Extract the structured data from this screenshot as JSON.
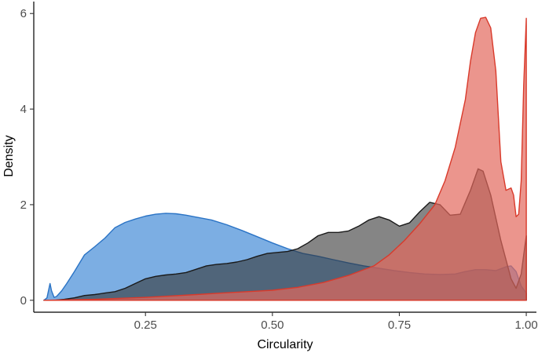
{
  "chart_data": {
    "type": "area",
    "title": "",
    "xlabel": "Circularity",
    "ylabel": "Density",
    "xlim": [
      0.03,
      1.02
    ],
    "ylim": [
      -0.25,
      6.25
    ],
    "x_ticks": [
      0.25,
      0.5,
      0.75,
      1.0
    ],
    "x_tick_labels": [
      "0.25",
      "0.50",
      "0.75",
      "1.00"
    ],
    "y_ticks": [
      0,
      2,
      4,
      6
    ],
    "y_tick_labels": [
      "0",
      "2",
      "4",
      "6"
    ],
    "grid": false,
    "legend": "none",
    "series": [
      {
        "color": "#2a73c5",
        "fill": "#4a8fd8",
        "fill_opacity": 0.72,
        "points": [
          [
            0.05,
            0.0
          ],
          [
            0.056,
            0.05
          ],
          [
            0.062,
            0.35
          ],
          [
            0.065,
            0.2
          ],
          [
            0.07,
            0.06
          ],
          [
            0.075,
            0.08
          ],
          [
            0.085,
            0.2
          ],
          [
            0.095,
            0.35
          ],
          [
            0.11,
            0.6
          ],
          [
            0.13,
            0.95
          ],
          [
            0.15,
            1.12
          ],
          [
            0.17,
            1.3
          ],
          [
            0.19,
            1.52
          ],
          [
            0.21,
            1.63
          ],
          [
            0.23,
            1.7
          ],
          [
            0.25,
            1.76
          ],
          [
            0.27,
            1.8
          ],
          [
            0.29,
            1.82
          ],
          [
            0.31,
            1.81
          ],
          [
            0.33,
            1.78
          ],
          [
            0.35,
            1.74
          ],
          [
            0.38,
            1.68
          ],
          [
            0.41,
            1.58
          ],
          [
            0.44,
            1.46
          ],
          [
            0.47,
            1.33
          ],
          [
            0.5,
            1.2
          ],
          [
            0.53,
            1.08
          ],
          [
            0.56,
            0.98
          ],
          [
            0.59,
            0.92
          ],
          [
            0.62,
            0.85
          ],
          [
            0.65,
            0.78
          ],
          [
            0.68,
            0.72
          ],
          [
            0.71,
            0.67
          ],
          [
            0.74,
            0.62
          ],
          [
            0.77,
            0.58
          ],
          [
            0.8,
            0.55
          ],
          [
            0.83,
            0.54
          ],
          [
            0.86,
            0.55
          ],
          [
            0.88,
            0.6
          ],
          [
            0.9,
            0.64
          ],
          [
            0.92,
            0.64
          ],
          [
            0.94,
            0.62
          ],
          [
            0.96,
            0.7
          ],
          [
            0.97,
            0.72
          ],
          [
            0.98,
            0.6
          ],
          [
            0.99,
            0.3
          ],
          [
            1.0,
            0.15
          ]
        ]
      },
      {
        "color": "#1a1a1a",
        "fill": "#333333",
        "fill_opacity": 0.6,
        "points": [
          [
            0.05,
            0.0
          ],
          [
            0.07,
            0.0
          ],
          [
            0.09,
            0.02
          ],
          [
            0.11,
            0.05
          ],
          [
            0.13,
            0.1
          ],
          [
            0.15,
            0.12
          ],
          [
            0.17,
            0.15
          ],
          [
            0.19,
            0.18
          ],
          [
            0.21,
            0.25
          ],
          [
            0.23,
            0.35
          ],
          [
            0.25,
            0.45
          ],
          [
            0.27,
            0.5
          ],
          [
            0.29,
            0.53
          ],
          [
            0.31,
            0.55
          ],
          [
            0.33,
            0.58
          ],
          [
            0.35,
            0.65
          ],
          [
            0.37,
            0.72
          ],
          [
            0.39,
            0.75
          ],
          [
            0.41,
            0.77
          ],
          [
            0.43,
            0.8
          ],
          [
            0.45,
            0.85
          ],
          [
            0.47,
            0.92
          ],
          [
            0.49,
            0.98
          ],
          [
            0.51,
            1.0
          ],
          [
            0.53,
            1.02
          ],
          [
            0.55,
            1.08
          ],
          [
            0.57,
            1.2
          ],
          [
            0.59,
            1.35
          ],
          [
            0.61,
            1.42
          ],
          [
            0.63,
            1.42
          ],
          [
            0.65,
            1.45
          ],
          [
            0.67,
            1.55
          ],
          [
            0.69,
            1.68
          ],
          [
            0.71,
            1.75
          ],
          [
            0.73,
            1.68
          ],
          [
            0.75,
            1.55
          ],
          [
            0.77,
            1.62
          ],
          [
            0.79,
            1.85
          ],
          [
            0.81,
            2.05
          ],
          [
            0.83,
            2.0
          ],
          [
            0.85,
            1.78
          ],
          [
            0.87,
            1.8
          ],
          [
            0.89,
            2.3
          ],
          [
            0.905,
            2.75
          ],
          [
            0.915,
            2.7
          ],
          [
            0.93,
            2.2
          ],
          [
            0.95,
            1.25
          ],
          [
            0.97,
            0.45
          ],
          [
            0.98,
            0.25
          ],
          [
            0.99,
            0.55
          ],
          [
            0.995,
            0.95
          ],
          [
            1.0,
            1.35
          ]
        ]
      },
      {
        "color": "#d93a2b",
        "fill": "#e2685c",
        "fill_opacity": 0.7,
        "points": [
          [
            0.05,
            0.0
          ],
          [
            0.1,
            0.01
          ],
          [
            0.15,
            0.02
          ],
          [
            0.2,
            0.04
          ],
          [
            0.25,
            0.06
          ],
          [
            0.3,
            0.09
          ],
          [
            0.35,
            0.12
          ],
          [
            0.4,
            0.15
          ],
          [
            0.45,
            0.18
          ],
          [
            0.5,
            0.21
          ],
          [
            0.55,
            0.27
          ],
          [
            0.6,
            0.37
          ],
          [
            0.65,
            0.52
          ],
          [
            0.7,
            0.72
          ],
          [
            0.73,
            0.95
          ],
          [
            0.76,
            1.25
          ],
          [
            0.79,
            1.6
          ],
          [
            0.82,
            2.0
          ],
          [
            0.84,
            2.5
          ],
          [
            0.86,
            3.2
          ],
          [
            0.88,
            4.2
          ],
          [
            0.89,
            5.0
          ],
          [
            0.9,
            5.6
          ],
          [
            0.91,
            5.9
          ],
          [
            0.92,
            5.92
          ],
          [
            0.93,
            5.7
          ],
          [
            0.94,
            4.8
          ],
          [
            0.95,
            2.9
          ],
          [
            0.96,
            2.3
          ],
          [
            0.97,
            2.35
          ],
          [
            0.975,
            2.2
          ],
          [
            0.98,
            1.75
          ],
          [
            0.985,
            1.8
          ],
          [
            0.99,
            2.5
          ],
          [
            0.995,
            4.5
          ],
          [
            1.0,
            5.9
          ]
        ]
      }
    ]
  }
}
